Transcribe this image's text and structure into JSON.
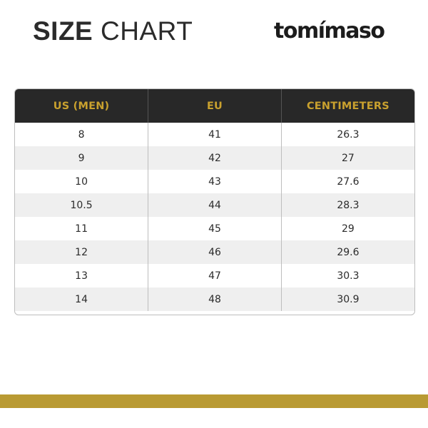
{
  "header": {
    "title_bold": "SIZE",
    "title_light": "CHART",
    "brand": "tomímaso"
  },
  "table": {
    "columns": [
      "US (MEN)",
      "EU",
      "CENTIMETERS"
    ],
    "rows": [
      [
        "8",
        "41",
        "26.3"
      ],
      [
        "9",
        "42",
        "27"
      ],
      [
        "10",
        "43",
        "27.6"
      ],
      [
        "10.5",
        "44",
        "28.3"
      ],
      [
        "11",
        "45",
        "29"
      ],
      [
        "12",
        "46",
        "29.6"
      ],
      [
        "13",
        "47",
        "30.3"
      ],
      [
        "14",
        "48",
        "30.9"
      ]
    ]
  },
  "colors": {
    "header_bg": "#282828",
    "header_text": "#c9a12e",
    "accent_bar": "#b99a33",
    "stripe": "#efefef"
  }
}
